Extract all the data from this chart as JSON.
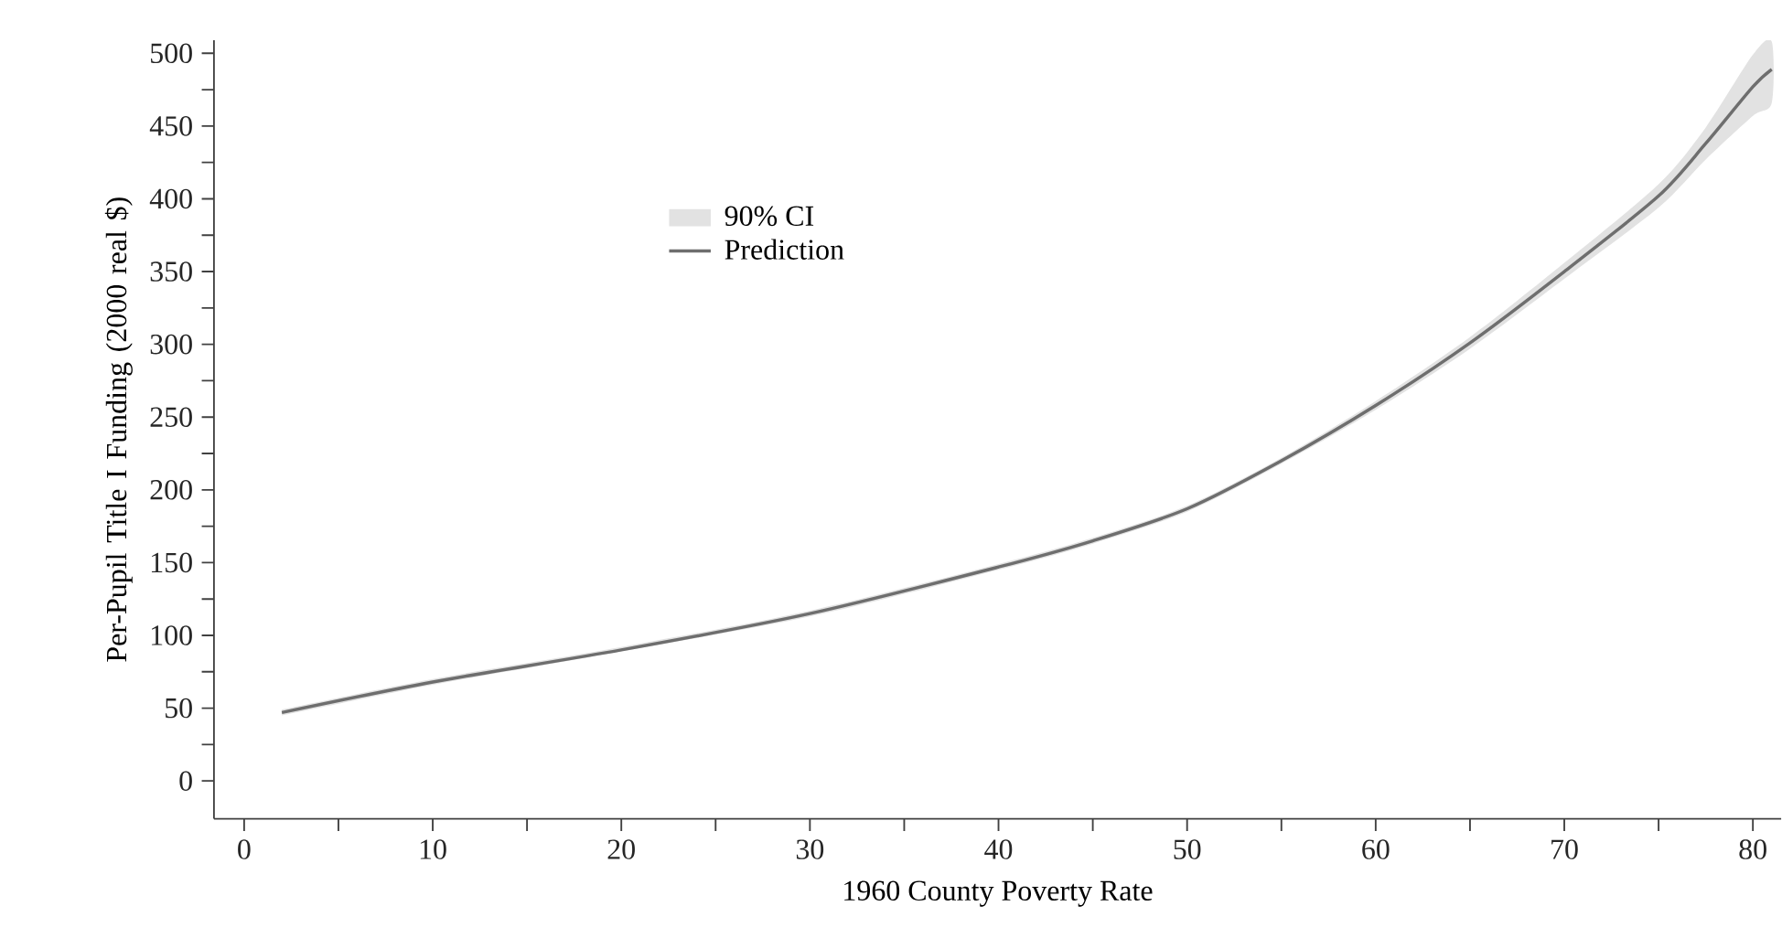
{
  "chart_data": {
    "type": "line",
    "xlabel": "1960 County Poverty Rate",
    "ylabel": "Per-Pupil Title I Funding (2000 real $)",
    "xlim": [
      -1.6,
      81.5
    ],
    "ylim": [
      -26,
      509
    ],
    "xticks": [
      0,
      {
        "value": 5,
        "label": null
      },
      10,
      {
        "value": 15,
        "label": null
      },
      20,
      {
        "value": 25,
        "label": null
      },
      30,
      {
        "value": 35,
        "label": null
      },
      40,
      {
        "value": 45,
        "label": null
      },
      50,
      {
        "value": 55,
        "label": null
      },
      60,
      {
        "value": 65,
        "label": null
      },
      70,
      {
        "value": 75,
        "label": null
      },
      80
    ],
    "yticks": [
      0,
      {
        "value": 25,
        "label": null
      },
      50,
      {
        "value": 75,
        "label": null
      },
      100,
      {
        "value": 125,
        "label": null
      },
      150,
      {
        "value": 175,
        "label": null
      },
      200,
      {
        "value": 225,
        "label": null
      },
      250,
      {
        "value": 275,
        "label": null
      },
      300,
      {
        "value": 325,
        "label": null
      },
      350,
      {
        "value": 375,
        "label": null
      },
      400,
      {
        "value": 425,
        "label": null
      },
      450,
      {
        "value": 475,
        "label": null
      },
      500
    ],
    "legend": "top left",
    "annotations": [
      "90% CI"
    ],
    "series": [
      {
        "name": "Prediction",
        "color": "#6e6e6e",
        "x": [
          2,
          10,
          20,
          30,
          40,
          45,
          50,
          55,
          60,
          65,
          70,
          75,
          77.5,
          80,
          81
        ],
        "values": [
          47,
          68,
          90,
          115,
          147,
          165,
          187,
          220,
          258,
          301,
          350,
          402,
          438,
          477,
          489
        ],
        "lower": [
          45,
          66,
          89,
          113,
          145,
          163,
          185,
          218,
          255,
          297,
          345,
          394,
          427,
          457,
          466
        ],
        "upper": [
          49,
          70,
          92,
          117,
          149,
          167,
          189,
          222,
          261,
          305,
          356,
          410,
          449,
          499,
          508
        ]
      }
    ]
  }
}
